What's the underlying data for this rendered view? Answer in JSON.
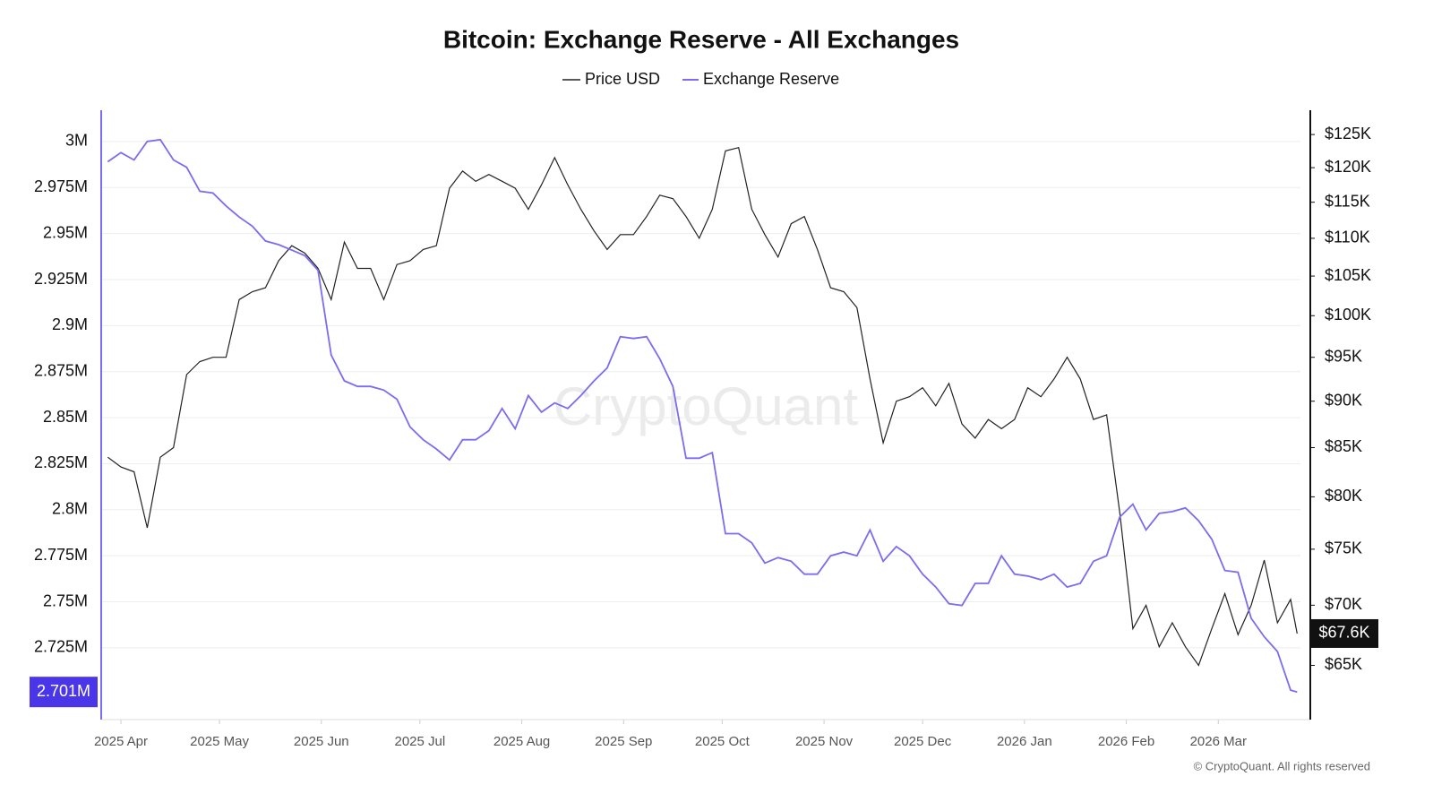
{
  "chart_data": {
    "type": "line",
    "title": "Bitcoin: Exchange Reserve - All Exchanges",
    "watermark": "CryptoQuant",
    "credit": "© CryptoQuant. All rights reserved",
    "legend": "top",
    "grid": true,
    "x": [
      -4,
      0,
      4,
      8,
      12,
      16,
      20,
      24,
      28,
      32,
      36,
      40,
      44,
      48,
      52,
      56,
      60,
      64,
      68,
      72,
      76,
      80,
      84,
      88,
      92,
      96,
      100,
      104,
      108,
      112,
      116,
      120,
      124,
      128,
      132,
      136,
      140,
      144,
      148,
      152,
      156,
      160,
      164,
      168,
      172,
      176,
      180,
      184,
      188,
      192,
      196,
      200,
      204,
      208,
      212,
      216,
      220,
      224,
      228,
      232,
      236,
      240,
      244,
      248,
      252,
      256,
      260,
      264,
      268,
      272,
      276,
      280,
      284,
      288,
      292,
      296,
      300,
      304,
      308,
      312,
      316,
      320,
      324,
      328,
      332,
      336,
      340,
      344,
      348,
      352,
      356,
      358
    ],
    "xlim": [
      -6,
      359
    ],
    "xticks": [
      {
        "value": 0,
        "label": "2025 Apr"
      },
      {
        "value": 30,
        "label": "2025 May"
      },
      {
        "value": 61,
        "label": "2025 Jun"
      },
      {
        "value": 91,
        "label": "2025 Jul"
      },
      {
        "value": 122,
        "label": "2025 Aug"
      },
      {
        "value": 153,
        "label": "2025 Sep"
      },
      {
        "value": 183,
        "label": "2025 Oct"
      },
      {
        "value": 214,
        "label": "2025 Nov"
      },
      {
        "value": 244,
        "label": "2025 Dec"
      },
      {
        "value": 275,
        "label": "2026 Jan"
      },
      {
        "value": 306,
        "label": "2026 Feb"
      },
      {
        "value": 334,
        "label": "2026 Mar"
      }
    ],
    "ylim": [
      2686000,
      3017000
    ],
    "yticks": [
      {
        "value": 2725000,
        "label": "2.725M"
      },
      {
        "value": 2750000,
        "label": "2.75M"
      },
      {
        "value": 2775000,
        "label": "2.775M"
      },
      {
        "value": 2800000,
        "label": "2.8M"
      },
      {
        "value": 2825000,
        "label": "2.825M"
      },
      {
        "value": 2850000,
        "label": "2.85M"
      },
      {
        "value": 2875000,
        "label": "2.875M"
      },
      {
        "value": 2900000,
        "label": "2.9M"
      },
      {
        "value": 2925000,
        "label": "2.925M"
      },
      {
        "value": 2950000,
        "label": "2.95M"
      },
      {
        "value": 2975000,
        "label": "2.975M"
      },
      {
        "value": 3000000,
        "label": "3M"
      }
    ],
    "y2lim": [
      60800,
      128800
    ],
    "y2log": true,
    "y2ticks": [
      {
        "value": 65000,
        "label": "$65K"
      },
      {
        "value": 70000,
        "label": "$70K"
      },
      {
        "value": 75000,
        "label": "$75K"
      },
      {
        "value": 80000,
        "label": "$80K"
      },
      {
        "value": 85000,
        "label": "$85K"
      },
      {
        "value": 90000,
        "label": "$90K"
      },
      {
        "value": 95000,
        "label": "$95K"
      },
      {
        "value": 100000,
        "label": "$100K"
      },
      {
        "value": 105000,
        "label": "$105K"
      },
      {
        "value": 110000,
        "label": "$110K"
      },
      {
        "value": 115000,
        "label": "$115K"
      },
      {
        "value": 120000,
        "label": "$120K"
      },
      {
        "value": 125000,
        "label": "$125K"
      }
    ],
    "series": [
      {
        "name": "Price USD",
        "color": "#222222",
        "axis": "y2",
        "values": [
          84000,
          83000,
          82500,
          77000,
          84000,
          85000,
          93000,
          94500,
          95000,
          95000,
          102000,
          103000,
          103500,
          107000,
          109000,
          108000,
          106000,
          102000,
          109500,
          106000,
          106000,
          102000,
          106500,
          107000,
          108500,
          109000,
          117000,
          119500,
          118000,
          119000,
          118000,
          117000,
          114000,
          117500,
          121500,
          117500,
          114000,
          111000,
          108500,
          110500,
          110500,
          113000,
          116000,
          115500,
          113000,
          110000,
          114000,
          122500,
          123000,
          114000,
          110500,
          107500,
          112000,
          113000,
          108500,
          103500,
          103000,
          101000,
          92500,
          85500,
          90000,
          90500,
          91500,
          89500,
          92000,
          87500,
          86000,
          88000,
          87000,
          88000,
          91500,
          90500,
          92500,
          95000,
          92500,
          88000,
          88500,
          78500,
          68000,
          70000,
          66500,
          68500,
          66500,
          65000,
          68000,
          71000,
          67500,
          70000,
          74000,
          68500,
          70500,
          67600
        ],
        "value_labels": [
          null,
          null,
          null,
          null,
          null,
          null,
          null,
          null,
          null,
          null,
          null,
          null,
          null,
          null,
          null,
          null,
          null,
          null,
          null,
          null,
          null,
          null,
          null,
          null,
          null,
          null,
          null,
          null,
          null,
          null,
          null,
          null,
          null,
          null,
          null,
          null,
          null,
          null,
          null,
          null,
          null,
          null,
          null,
          null,
          null,
          null,
          null,
          null,
          null,
          null,
          null,
          null,
          null,
          null,
          null,
          null,
          null,
          null,
          null,
          null,
          null,
          null,
          null,
          null,
          null,
          null,
          null,
          null,
          null,
          null,
          null,
          null,
          null,
          null,
          null,
          null,
          null,
          null,
          null,
          null,
          null,
          null,
          null,
          null,
          null,
          null,
          null,
          null,
          null,
          null,
          null,
          "$67.6K"
        ]
      },
      {
        "name": "Exchange Reserve",
        "color": "#7b6cf0",
        "badge_color": "#4a35e8",
        "axis": "y",
        "values": [
          2989000,
          2994000,
          2990000,
          3000000,
          3001000,
          2990000,
          2986000,
          2973000,
          2972000,
          2965000,
          2959000,
          2954000,
          2946000,
          2944000,
          2941000,
          2938000,
          2930000,
          2884000,
          2870000,
          2867000,
          2867000,
          2865000,
          2860000,
          2845000,
          2838000,
          2833000,
          2827000,
          2838000,
          2838000,
          2843000,
          2855000,
          2844000,
          2862000,
          2853000,
          2858000,
          2855000,
          2862000,
          2870000,
          2877000,
          2894000,
          2893000,
          2894000,
          2882000,
          2867000,
          2828000,
          2828000,
          2831000,
          2787000,
          2787000,
          2782000,
          2771000,
          2774000,
          2772000,
          2765000,
          2765000,
          2775000,
          2777000,
          2775000,
          2789000,
          2772000,
          2780000,
          2775000,
          2765000,
          2758000,
          2749000,
          2748000,
          2760000,
          2760000,
          2775000,
          2765000,
          2764000,
          2762000,
          2765000,
          2758000,
          2760000,
          2772000,
          2775000,
          2796000,
          2803000,
          2789000,
          2798000,
          2799000,
          2801000,
          2794000,
          2784000,
          2767000,
          2766000,
          2741000,
          2731000,
          2723000,
          2702000,
          2701000
        ],
        "value_labels": [
          null,
          null,
          null,
          null,
          null,
          null,
          null,
          null,
          null,
          null,
          null,
          null,
          null,
          null,
          null,
          null,
          null,
          null,
          null,
          null,
          null,
          null,
          null,
          null,
          null,
          null,
          null,
          null,
          null,
          null,
          null,
          null,
          null,
          null,
          null,
          null,
          null,
          null,
          null,
          null,
          null,
          null,
          null,
          null,
          null,
          null,
          null,
          null,
          null,
          null,
          null,
          null,
          null,
          null,
          null,
          null,
          null,
          null,
          null,
          null,
          null,
          null,
          null,
          null,
          null,
          null,
          null,
          null,
          null,
          null,
          null,
          null,
          null,
          null,
          null,
          null,
          null,
          null,
          null,
          null,
          null,
          null,
          null,
          null,
          null,
          null,
          null,
          null,
          null,
          null,
          null,
          "2.701M"
        ]
      }
    ]
  }
}
